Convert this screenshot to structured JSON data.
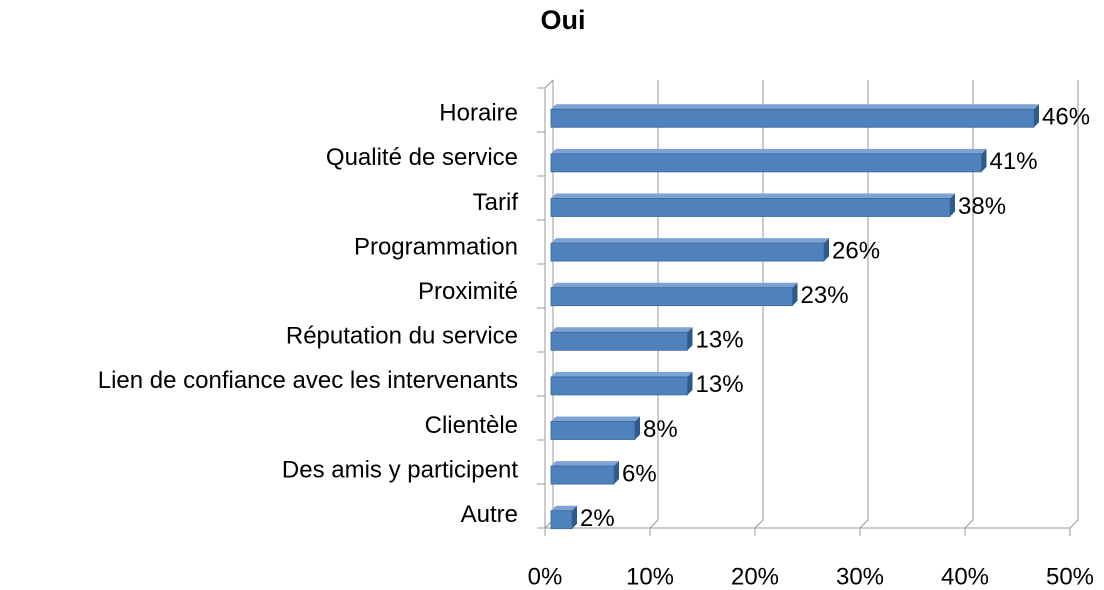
{
  "chart_data": {
    "type": "bar",
    "orientation": "horizontal",
    "title": "Oui",
    "categories": [
      "Horaire",
      "Qualité de service",
      "Tarif",
      "Programmation",
      "Proximité",
      "Réputation du service",
      "Lien de confiance avec les intervenants",
      "Clientèle",
      "Des amis y participent",
      "Autre"
    ],
    "values": [
      46,
      41,
      38,
      26,
      23,
      13,
      13,
      8,
      6,
      2
    ],
    "value_labels": [
      "46%",
      "41%",
      "38%",
      "26%",
      "23%",
      "13%",
      "13%",
      "8%",
      "6%",
      "2%"
    ],
    "color": "#4f81bd",
    "xlim": [
      0,
      50
    ],
    "xticks": [
      {
        "value": 0,
        "label": "0%"
      },
      {
        "value": 10,
        "label": "10%"
      },
      {
        "value": 20,
        "label": "20%"
      },
      {
        "value": 30,
        "label": "30%"
      },
      {
        "value": 40,
        "label": "40%"
      },
      {
        "value": 50,
        "label": "50%"
      }
    ],
    "grid": true
  }
}
